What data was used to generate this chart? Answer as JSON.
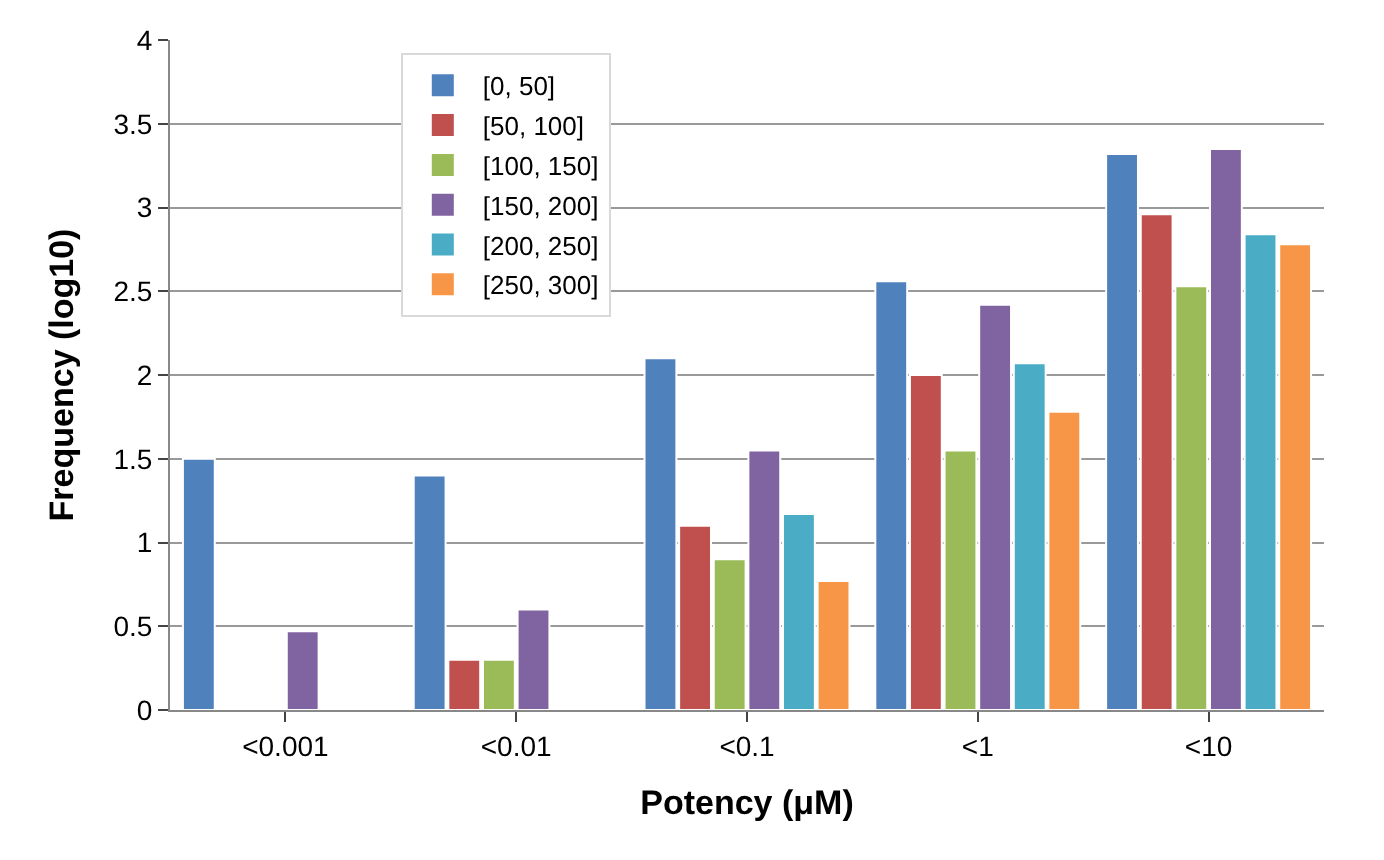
{
  "chart_data": {
    "type": "bar",
    "xlabel": "Potency (μM)",
    "ylabel": "Frequency (log10)",
    "categories": [
      "<0.001",
      "<0.01",
      "<0.1",
      "<1",
      "<10"
    ],
    "series": [
      {
        "name": "[0, 50]",
        "color": "#4f81bd",
        "values": [
          1.5,
          1.4,
          2.1,
          2.56,
          3.32
        ]
      },
      {
        "name": "[50, 100]",
        "color": "#c0504d",
        "values": [
          null,
          0.3,
          1.1,
          2.0,
          2.96
        ]
      },
      {
        "name": "[100, 150]",
        "color": "#9bbb59",
        "values": [
          null,
          0.3,
          0.9,
          1.55,
          2.53
        ]
      },
      {
        "name": "[150, 200]",
        "color": "#8064a2",
        "values": [
          0.47,
          0.6,
          1.55,
          2.42,
          3.35
        ]
      },
      {
        "name": "[200, 250]",
        "color": "#4bacc6",
        "values": [
          null,
          null,
          1.17,
          2.07,
          2.84
        ]
      },
      {
        "name": "[250, 300]",
        "color": "#f79646",
        "values": [
          null,
          null,
          0.77,
          1.78,
          2.78
        ]
      }
    ],
    "ylim": [
      0,
      4
    ],
    "yticks": [
      0,
      0.5,
      1,
      1.5,
      2,
      2.5,
      3,
      3.5,
      4
    ],
    "grid": "y",
    "legend": "top left"
  }
}
